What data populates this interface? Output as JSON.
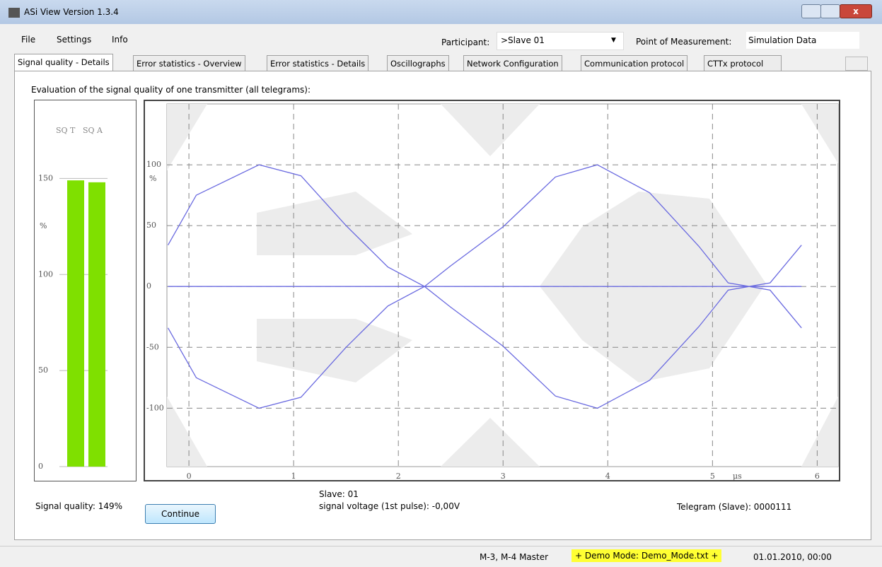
{
  "window_title": "ASi View Version 1.3.4",
  "menu": [
    "File",
    "Settings",
    "Info"
  ],
  "participant_label": "Participant:",
  "participant_value": ">Slave 01",
  "measurement_label": "Point of Measurement:",
  "measurement_value": "Simulation Data",
  "tabs": [
    "Signal quality - Details",
    "Error statistics - Overview",
    "Error statistics - Details",
    "Oscillographs",
    "Network Configuration",
    "Communication protocol",
    "CTTx protocol"
  ],
  "heading": "Evaluation of the signal quality of one transmitter (all telegrams):",
  "signal_quality": "Signal quality: 149%",
  "continue_button": "Continue",
  "slave_info": "Slave: 01",
  "voltage_info": "signal voltage (1st pulse): -0,00V",
  "telegram_info": "Telegram (Slave): 0000111",
  "status": [
    "M-3, M-4 Master",
    "+ Demo Mode: Demo_Mode.txt +",
    "01.01.2010, 00:00"
  ],
  "chart_data": [
    {
      "type": "bar",
      "categories": [
        "SQ T",
        "SQ A"
      ],
      "values": [
        149,
        148
      ],
      "color": "#7fe000",
      "y_unit": "%",
      "ylim": [
        0,
        191
      ],
      "yticks": [
        0,
        50,
        100,
        150
      ]
    },
    {
      "type": "line",
      "y_unit": "%",
      "x_unit": "μs",
      "x": [
        -0.2,
        0.07,
        0.67,
        1.07,
        1.5,
        1.9,
        2.25,
        2.5,
        3.0,
        3.5,
        3.9,
        4.4,
        4.87,
        5.15,
        5.35,
        5.55,
        5.85
      ],
      "series": [
        {
          "color": "#6a6ae0",
          "values": [
            34,
            75,
            100,
            91,
            50,
            16,
            0,
            -17,
            -49,
            -90,
            -100,
            -77,
            -33,
            -3,
            0,
            3,
            34
          ]
        },
        {
          "color": "#6a6ae0",
          "values": [
            -34,
            -75,
            -100,
            -91,
            -50,
            -16,
            0,
            17,
            49,
            90,
            100,
            77,
            33,
            3,
            0,
            -3,
            -34
          ]
        },
        {
          "color": "#6a6ae0",
          "values": [
            0,
            0,
            0,
            0,
            0,
            0,
            0,
            0,
            0,
            0,
            0,
            0,
            0,
            0,
            0,
            0,
            0
          ]
        }
      ],
      "xlim": [
        -0.21,
        6.2
      ],
      "ylim": [
        -148,
        150
      ],
      "xticks": [
        0,
        1,
        2,
        3,
        4,
        5,
        6
      ],
      "yticks": [
        -100,
        -50,
        0,
        50,
        100
      ],
      "grid": true
    }
  ]
}
